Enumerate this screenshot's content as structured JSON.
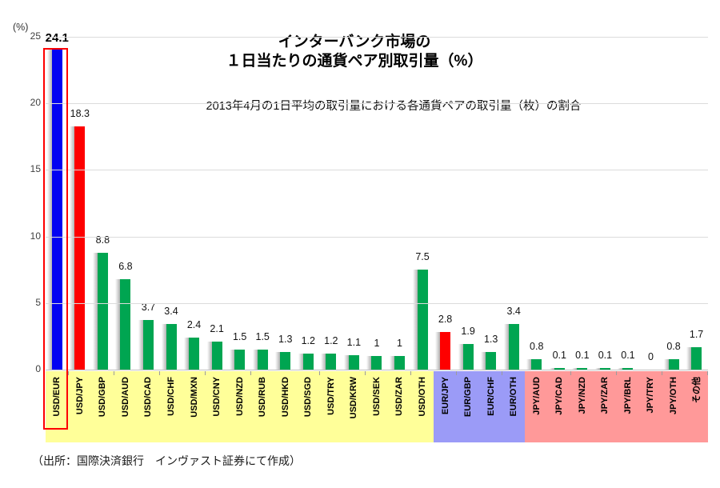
{
  "chart_data": {
    "type": "bar",
    "title_line1": "インターバンク市場の",
    "title_line2": "１日当たりの通貨ペア別取引量（%）",
    "subtitle": "2013年4月の1日平均の取引量における各通貨ペアの取引量（枚）の割合",
    "ylabel": "(%)",
    "ylim": [
      0,
      25
    ],
    "yticks": [
      0,
      5,
      10,
      15,
      20,
      25
    ],
    "grid": "horizontal",
    "legend": "none",
    "source_note": "（出所：国際決済銀行　インヴァスト証券にて作成）",
    "highlighted_category": "USD/EUR",
    "bar_colors": {
      "blue": "#0202f2",
      "red": "#fe0000",
      "green": "#00a551"
    },
    "group_colors": {
      "usd": "#ffff99",
      "eur": "#9b9bf7",
      "jpy": "#ff9999"
    },
    "bars": [
      {
        "label": "USD/EUR",
        "value": 24.1,
        "display": "24.1",
        "color": "blue",
        "group": "usd"
      },
      {
        "label": "USD/JPY",
        "value": 18.3,
        "display": "18.3",
        "color": "red",
        "group": "usd"
      },
      {
        "label": "USD/GBP",
        "value": 8.8,
        "display": "8.8",
        "color": "green",
        "group": "usd"
      },
      {
        "label": "USD/AUD",
        "value": 6.8,
        "display": "6.8",
        "color": "green",
        "group": "usd"
      },
      {
        "label": "USD/CAD",
        "value": 3.7,
        "display": "3.7",
        "color": "green",
        "group": "usd"
      },
      {
        "label": "USD/CHF",
        "value": 3.4,
        "display": "3.4",
        "color": "green",
        "group": "usd"
      },
      {
        "label": "USD/MXN",
        "value": 2.4,
        "display": "2.4",
        "color": "green",
        "group": "usd"
      },
      {
        "label": "USD/CNY",
        "value": 2.1,
        "display": "2.1",
        "color": "green",
        "group": "usd"
      },
      {
        "label": "USD/NZD",
        "value": 1.5,
        "display": "1.5",
        "color": "green",
        "group": "usd"
      },
      {
        "label": "USD/RUB",
        "value": 1.5,
        "display": "1.5",
        "color": "green",
        "group": "usd"
      },
      {
        "label": "USD/HKD",
        "value": 1.3,
        "display": "1.3",
        "color": "green",
        "group": "usd"
      },
      {
        "label": "USD/SGD",
        "value": 1.2,
        "display": "1.2",
        "color": "green",
        "group": "usd"
      },
      {
        "label": "USD/TRY",
        "value": 1.2,
        "display": "1.2",
        "color": "green",
        "group": "usd"
      },
      {
        "label": "USD/KRW",
        "value": 1.1,
        "display": "1.1",
        "color": "green",
        "group": "usd"
      },
      {
        "label": "USD/SEK",
        "value": 1.0,
        "display": "1",
        "color": "green",
        "group": "usd"
      },
      {
        "label": "USD/ZAR",
        "value": 1.0,
        "display": "1",
        "color": "green",
        "group": "usd"
      },
      {
        "label": "USD/OTH",
        "value": 7.5,
        "display": "7.5",
        "color": "green",
        "group": "usd"
      },
      {
        "label": "EUR/JPY",
        "value": 2.8,
        "display": "2.8",
        "color": "red",
        "group": "eur"
      },
      {
        "label": "EUR/GBP",
        "value": 1.9,
        "display": "1.9",
        "color": "green",
        "group": "eur"
      },
      {
        "label": "EUR/CHF",
        "value": 1.3,
        "display": "1.3",
        "color": "green",
        "group": "eur"
      },
      {
        "label": "EUR/OTH",
        "value": 3.4,
        "display": "3.4",
        "color": "green",
        "group": "eur"
      },
      {
        "label": "JPY/AUD",
        "value": 0.8,
        "display": "0.8",
        "color": "green",
        "group": "jpy"
      },
      {
        "label": "JPY/CAD",
        "value": 0.1,
        "display": "0.1",
        "color": "green",
        "group": "jpy"
      },
      {
        "label": "JPY/NZD",
        "value": 0.1,
        "display": "0.1",
        "color": "green",
        "group": "jpy"
      },
      {
        "label": "JPY/ZAR",
        "value": 0.1,
        "display": "0.1",
        "color": "green",
        "group": "jpy"
      },
      {
        "label": "JPY/BRL",
        "value": 0.1,
        "display": "0.1",
        "color": "green",
        "group": "jpy"
      },
      {
        "label": "JPY/TRY",
        "value": 0.0,
        "display": "0",
        "color": "green",
        "group": "jpy"
      },
      {
        "label": "JPY/OTH",
        "value": 0.8,
        "display": "0.8",
        "color": "green",
        "group": "jpy"
      },
      {
        "label": "その他",
        "value": 1.7,
        "display": "1.7",
        "color": "green",
        "group": "jpy"
      }
    ]
  }
}
